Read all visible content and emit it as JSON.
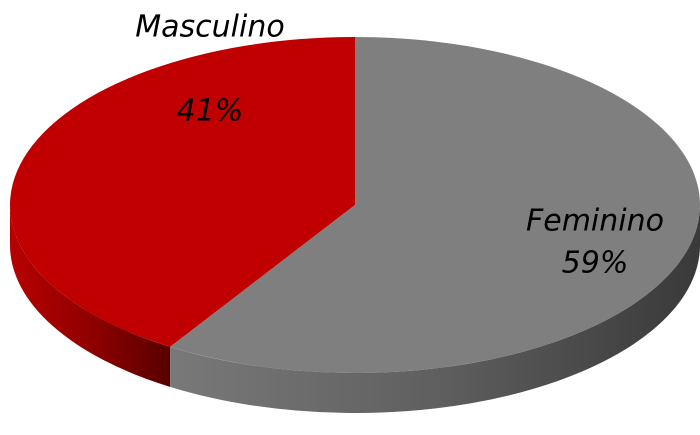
{
  "chart_data": {
    "type": "pie3d",
    "categories": [
      "Masculino",
      "Feminino"
    ],
    "values": [
      41,
      59
    ],
    "value_labels": [
      "41%",
      "59%"
    ],
    "colors": [
      "#c00000",
      "#7f7f7f"
    ]
  }
}
